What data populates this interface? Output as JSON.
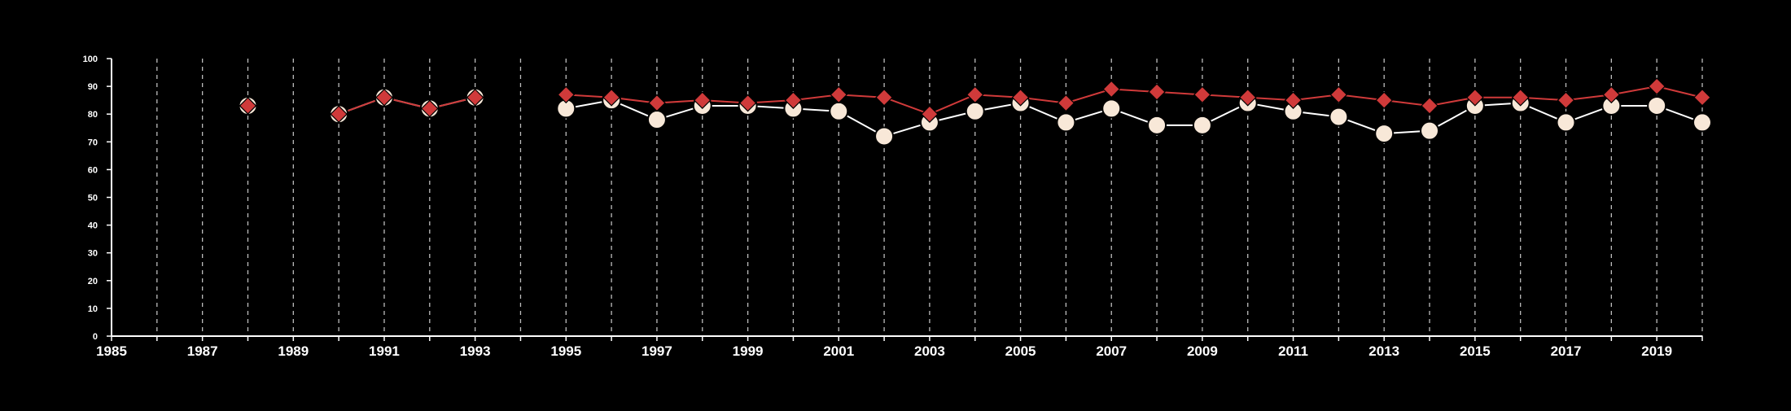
{
  "chart_data": {
    "type": "line",
    "title": "",
    "xlabel": "",
    "ylabel": "",
    "xlim": [
      1985,
      2020
    ],
    "ylim": [
      0,
      100
    ],
    "x_tick_labels": [
      "1985",
      "1987",
      "1989",
      "1991",
      "1993",
      "1995",
      "1997",
      "1999",
      "2001",
      "2003",
      "2005",
      "2007",
      "2009",
      "2011",
      "2013",
      "2015",
      "2017",
      "2019"
    ],
    "x_gridlines": [
      1986,
      1987,
      1988,
      1989,
      1990,
      1991,
      1992,
      1993,
      1994,
      1995,
      1996,
      1997,
      1998,
      1999,
      2000,
      2001,
      2002,
      2003,
      2004,
      2005,
      2006,
      2007,
      2008,
      2009,
      2010,
      2011,
      2012,
      2013,
      2014,
      2015,
      2016,
      2017,
      2018,
      2019,
      2020
    ],
    "y_tick_labels": [
      "0",
      "10",
      "20",
      "30",
      "40",
      "50",
      "60",
      "70",
      "80",
      "90",
      "100"
    ],
    "grid": "vertical dashed",
    "legend": "none",
    "background_color": "#000000",
    "axis_color": "#ffffff",
    "series": [
      {
        "marker": "circle",
        "color": "#f8e8d8",
        "line_color": "#ffffff",
        "points": [
          [
            1988,
            83
          ],
          [
            1990,
            80
          ],
          [
            1991,
            86
          ],
          [
            1992,
            82
          ],
          [
            1993,
            86
          ],
          [
            1995,
            82
          ],
          [
            1996,
            85
          ],
          [
            1997,
            78
          ],
          [
            1998,
            83
          ],
          [
            1999,
            83
          ],
          [
            2000,
            82
          ],
          [
            2001,
            81
          ],
          [
            2002,
            72
          ],
          [
            2003,
            77
          ],
          [
            2004,
            81
          ],
          [
            2005,
            84
          ],
          [
            2006,
            77
          ],
          [
            2007,
            82
          ],
          [
            2008,
            76
          ],
          [
            2009,
            76
          ],
          [
            2010,
            84
          ],
          [
            2011,
            81
          ],
          [
            2012,
            79
          ],
          [
            2013,
            73
          ],
          [
            2014,
            74
          ],
          [
            2015,
            83
          ],
          [
            2016,
            84
          ],
          [
            2017,
            77
          ],
          [
            2018,
            83
          ],
          [
            2019,
            83
          ],
          [
            2020,
            77
          ]
        ]
      },
      {
        "marker": "diamond",
        "color": "#d03a3a",
        "line_color": "#d03a3a",
        "points": [
          [
            1988,
            83
          ],
          [
            1990,
            80
          ],
          [
            1991,
            86
          ],
          [
            1992,
            82
          ],
          [
            1993,
            86
          ],
          [
            1995,
            87
          ],
          [
            1996,
            86
          ],
          [
            1997,
            84
          ],
          [
            1998,
            85
          ],
          [
            1999,
            84
          ],
          [
            2000,
            85
          ],
          [
            2001,
            87
          ],
          [
            2002,
            86
          ],
          [
            2003,
            80
          ],
          [
            2004,
            87
          ],
          [
            2005,
            86
          ],
          [
            2006,
            84
          ],
          [
            2007,
            89
          ],
          [
            2008,
            88
          ],
          [
            2009,
            87
          ],
          [
            2010,
            86
          ],
          [
            2011,
            85
          ],
          [
            2012,
            87
          ],
          [
            2013,
            85
          ],
          [
            2014,
            83
          ],
          [
            2015,
            86
          ],
          [
            2016,
            86
          ],
          [
            2017,
            85
          ],
          [
            2018,
            87
          ],
          [
            2019,
            90
          ],
          [
            2020,
            86
          ]
        ]
      }
    ]
  }
}
